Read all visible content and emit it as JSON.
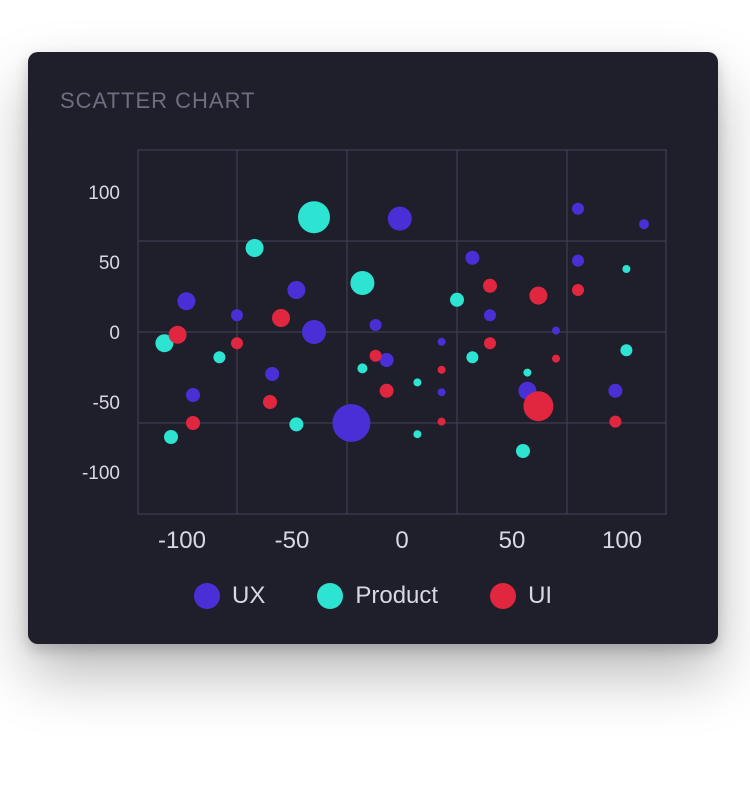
{
  "card": {
    "title": "SCATTER CHART"
  },
  "colors": {
    "background": "#1f1e2b",
    "grid": "#45445a",
    "text": "#d9d8e0",
    "title": "#6f6e80"
  },
  "chart_data": {
    "type": "scatter",
    "title": "SCATTER CHART",
    "xlim": [
      -120,
      120
    ],
    "ylim": [
      -130,
      130
    ],
    "x_ticks": [
      -100,
      -50,
      0,
      50,
      100
    ],
    "y_ticks": [
      100,
      50,
      0,
      -50,
      -100
    ],
    "grid": true,
    "legend_position": "bottom",
    "series": [
      {
        "name": "UX",
        "color": "#4a2fd6",
        "points": [
          {
            "x": -98,
            "y": 22,
            "r": 9
          },
          {
            "x": -95,
            "y": -45,
            "r": 7
          },
          {
            "x": -75,
            "y": 12,
            "r": 6
          },
          {
            "x": -59,
            "y": -30,
            "r": 7
          },
          {
            "x": -48,
            "y": 30,
            "r": 9
          },
          {
            "x": -40,
            "y": 0,
            "r": 12
          },
          {
            "x": -23,
            "y": -65,
            "r": 19
          },
          {
            "x": -12,
            "y": 5,
            "r": 6
          },
          {
            "x": -7,
            "y": -20,
            "r": 7
          },
          {
            "x": -1,
            "y": 81,
            "r": 12
          },
          {
            "x": 18,
            "y": -7,
            "r": 4
          },
          {
            "x": 18,
            "y": -43,
            "r": 4
          },
          {
            "x": 32,
            "y": 53,
            "r": 7
          },
          {
            "x": 40,
            "y": 12,
            "r": 6
          },
          {
            "x": 57,
            "y": -42,
            "r": 9
          },
          {
            "x": 70,
            "y": 1,
            "r": 4
          },
          {
            "x": 80,
            "y": 88,
            "r": 6
          },
          {
            "x": 80,
            "y": 51,
            "r": 6
          },
          {
            "x": 97,
            "y": -42,
            "r": 7
          },
          {
            "x": 110,
            "y": 77,
            "r": 5
          }
        ]
      },
      {
        "name": "Product",
        "color": "#2de3d2",
        "points": [
          {
            "x": -108,
            "y": -8,
            "r": 9
          },
          {
            "x": -105,
            "y": -75,
            "r": 7
          },
          {
            "x": -83,
            "y": -18,
            "r": 6
          },
          {
            "x": -67,
            "y": 60,
            "r": 9
          },
          {
            "x": -48,
            "y": -66,
            "r": 7
          },
          {
            "x": -40,
            "y": 82,
            "r": 16
          },
          {
            "x": -18,
            "y": 35,
            "r": 12
          },
          {
            "x": -18,
            "y": -26,
            "r": 5
          },
          {
            "x": 7,
            "y": -36,
            "r": 4
          },
          {
            "x": 7,
            "y": -73,
            "r": 4
          },
          {
            "x": 25,
            "y": 23,
            "r": 7
          },
          {
            "x": 32,
            "y": -18,
            "r": 6
          },
          {
            "x": 55,
            "y": -85,
            "r": 7
          },
          {
            "x": 57,
            "y": -29,
            "r": 4
          },
          {
            "x": 102,
            "y": 45,
            "r": 4
          },
          {
            "x": 102,
            "y": -13,
            "r": 6
          }
        ]
      },
      {
        "name": "UI",
        "color": "#e1273f",
        "points": [
          {
            "x": -102,
            "y": -2,
            "r": 9
          },
          {
            "x": -95,
            "y": -65,
            "r": 7
          },
          {
            "x": -75,
            "y": -8,
            "r": 6
          },
          {
            "x": -60,
            "y": -50,
            "r": 7
          },
          {
            "x": -55,
            "y": 10,
            "r": 9
          },
          {
            "x": -12,
            "y": -17,
            "r": 6
          },
          {
            "x": -7,
            "y": -42,
            "r": 7
          },
          {
            "x": 18,
            "y": -27,
            "r": 4
          },
          {
            "x": 18,
            "y": -64,
            "r": 4
          },
          {
            "x": 40,
            "y": 33,
            "r": 7
          },
          {
            "x": 40,
            "y": -8,
            "r": 6
          },
          {
            "x": 62,
            "y": 26,
            "r": 9
          },
          {
            "x": 62,
            "y": -53,
            "r": 15
          },
          {
            "x": 70,
            "y": -19,
            "r": 4
          },
          {
            "x": 80,
            "y": 30,
            "r": 6
          },
          {
            "x": 97,
            "y": -64,
            "r": 6
          }
        ]
      }
    ]
  },
  "legend": {
    "items": [
      {
        "label": "UX",
        "color": "#4a2fd6"
      },
      {
        "label": "Product",
        "color": "#2de3d2"
      },
      {
        "label": "UI",
        "color": "#e1273f"
      }
    ]
  }
}
